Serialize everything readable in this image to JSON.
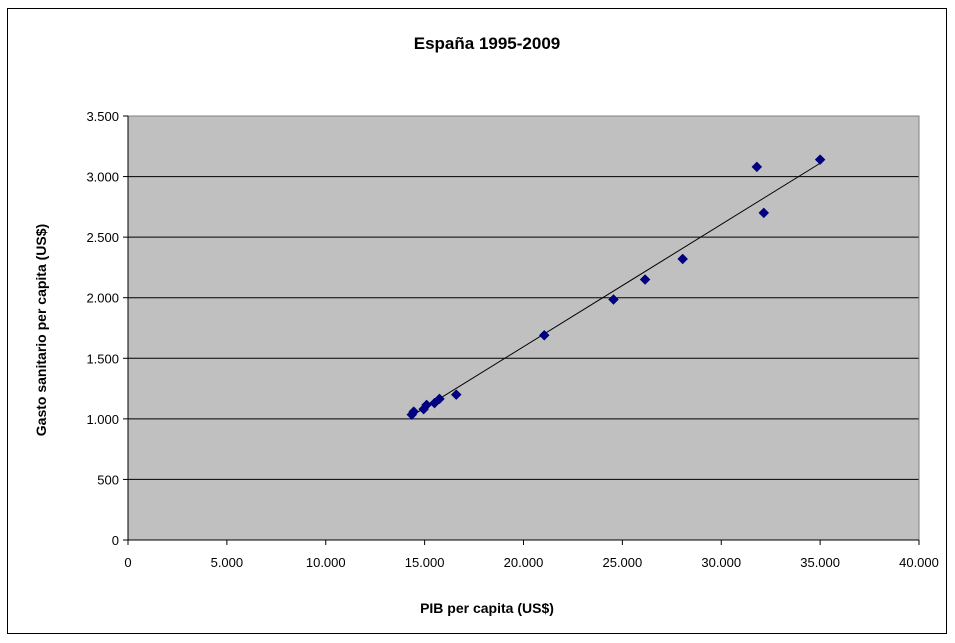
{
  "chart_data": {
    "type": "scatter",
    "title": "España 1995-2009",
    "xlabel": "PIB per capita (US$)",
    "ylabel": "Gasto sanitario per capita (US$)",
    "xlim": [
      0,
      40000
    ],
    "ylim": [
      0,
      3500
    ],
    "x_ticks": [
      0,
      5000,
      10000,
      15000,
      20000,
      25000,
      30000,
      35000,
      40000
    ],
    "x_tick_labels": [
      "0",
      "5.000",
      "10.000",
      "15.000",
      "20.000",
      "25.000",
      "30.000",
      "35.000",
      "40.000"
    ],
    "y_ticks": [
      0,
      500,
      1000,
      1500,
      2000,
      2500,
      3000,
      3500
    ],
    "y_tick_labels": [
      "0",
      "500",
      "1.000",
      "1.500",
      "2.000",
      "2.500",
      "3.000",
      "3.500"
    ],
    "grid": "horizontal",
    "legend": "none",
    "plot_background": "#c0c0c0",
    "marker_color": "#000080",
    "marker": "diamond",
    "points": [
      {
        "x": 14350,
        "y": 1035
      },
      {
        "x": 14450,
        "y": 1060
      },
      {
        "x": 14950,
        "y": 1080
      },
      {
        "x": 15100,
        "y": 1115
      },
      {
        "x": 15500,
        "y": 1130
      },
      {
        "x": 15750,
        "y": 1165
      },
      {
        "x": 16600,
        "y": 1200
      },
      {
        "x": 21050,
        "y": 1690
      },
      {
        "x": 24550,
        "y": 1985
      },
      {
        "x": 26150,
        "y": 2150
      },
      {
        "x": 28050,
        "y": 2320
      },
      {
        "x": 31800,
        "y": 3080
      },
      {
        "x": 32150,
        "y": 2700
      },
      {
        "x": 35000,
        "y": 3140
      }
    ],
    "trendline": {
      "color": "#000000",
      "start": {
        "x": 14300,
        "y": 1020
      },
      "end": {
        "x": 35000,
        "y": 3110
      }
    }
  }
}
